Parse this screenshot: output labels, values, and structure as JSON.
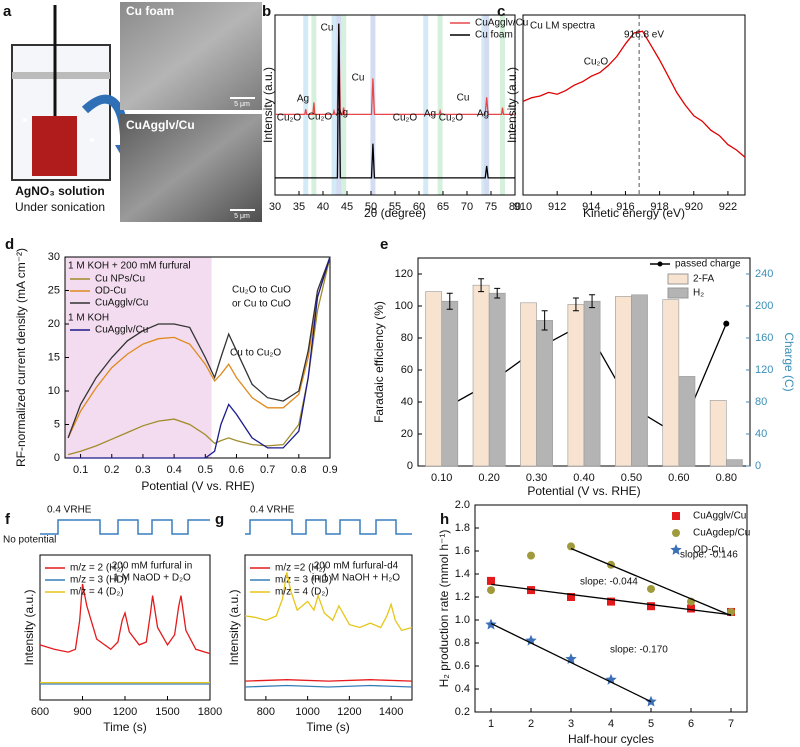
{
  "panel_a": {
    "panel": "a",
    "sem_top": "Cu foam",
    "sem_bottom": "CuAgglv/Cu",
    "scale_bar": "5 μm",
    "solution": "AgNO₃ solution",
    "condition": "Under sonication"
  },
  "chart_data": [
    {
      "panel": "b",
      "type": "line",
      "xlabel": "2θ (degree)",
      "ylabel": "Intensity (a.u.)",
      "xlim": [
        30,
        80
      ],
      "xticks": [
        30,
        35,
        40,
        45,
        50,
        55,
        60,
        65,
        70,
        75,
        80
      ],
      "ylim": [
        0,
        105
      ],
      "bands": [
        {
          "x": 36.4,
          "color": "#d3ebf7"
        },
        {
          "x": 38.1,
          "color": "#d5f0dc"
        },
        {
          "x": 42.3,
          "color": "#d3ebf7"
        },
        {
          "x": 43.3,
          "color": "#d4dcf2"
        },
        {
          "x": 44.3,
          "color": "#d5f0dc"
        },
        {
          "x": 50.4,
          "color": "#d4dcf2"
        },
        {
          "x": 61.4,
          "color": "#d3ebf7"
        },
        {
          "x": 64.4,
          "color": "#d5f0dc"
        },
        {
          "x": 73.5,
          "color": "#d3ebf7"
        },
        {
          "x": 74.1,
          "color": "#d4dcf2"
        },
        {
          "x": 77.4,
          "color": "#d5f0dc"
        }
      ],
      "annotations": [
        "Cu",
        "Cu",
        "Cu",
        "Ag",
        "Ag",
        "Ag",
        "Ag",
        "Cu₂O",
        "Cu₂O",
        "Cu₂O",
        "Cu₂O"
      ],
      "series": [
        {
          "name": "CuAgglv/Cu",
          "color": "#e8474a",
          "x": [
            30,
            36.2,
            36.4,
            36.6,
            37.9,
            38.1,
            38.3,
            42.1,
            42.3,
            42.5,
            43,
            43.3,
            43.6,
            44.1,
            44.3,
            44.5,
            50.1,
            50.4,
            50.7,
            64.2,
            64.4,
            64.6,
            73.8,
            74.1,
            74.4,
            77.2,
            77.4,
            77.6,
            80
          ],
          "values": [
            47,
            47,
            50,
            47,
            47,
            54,
            47,
            47,
            49,
            47,
            47,
            100,
            47,
            47,
            51,
            47,
            47,
            68,
            47,
            47,
            49,
            47,
            47,
            57,
            47,
            47,
            51,
            47,
            47
          ]
        },
        {
          "name": "Cu foam",
          "color": "#000000",
          "x": [
            30,
            43,
            43.3,
            43.6,
            50.1,
            50.4,
            50.7,
            73.8,
            74.1,
            74.4,
            80
          ],
          "values": [
            10,
            10,
            100,
            10,
            10,
            30,
            10,
            10,
            17,
            10,
            10
          ]
        }
      ]
    },
    {
      "panel": "c",
      "type": "line",
      "xlabel": "Kinetic energy (eV)",
      "ylabel": "Intensity (a.u.)",
      "xlim": [
        910,
        923
      ],
      "xticks": [
        910,
        912,
        914,
        916,
        918,
        920,
        922
      ],
      "ylim": [
        0,
        100
      ],
      "vline": 916.8,
      "annotations": [
        "Cu LM spectra",
        "Cu₂O",
        "916.8 eV"
      ],
      "x": [
        910,
        910.5,
        911,
        911.5,
        912,
        912.5,
        913,
        913.5,
        914,
        914.5,
        915,
        915.5,
        916,
        916.5,
        917,
        917.5,
        918,
        918.5,
        919,
        919.5,
        920,
        920.5,
        921,
        921.5,
        922,
        922.5,
        923
      ],
      "series": [
        {
          "color": "#e00000",
          "values": [
            52,
            54,
            55,
            57,
            56,
            58,
            61,
            63,
            66,
            68,
            72,
            77,
            84,
            90,
            91,
            83,
            75,
            66,
            57,
            50,
            44,
            41,
            36,
            33,
            28,
            25,
            21
          ]
        }
      ]
    },
    {
      "panel": "d",
      "type": "line",
      "xlabel": "Potential (V vs. RHE)",
      "ylabel": "RF-normalized current density (mA cm⁻²)",
      "xlim": [
        0.05,
        0.9
      ],
      "xticks": [
        0.1,
        0.2,
        0.3,
        0.4,
        0.5,
        0.6,
        0.7,
        0.8,
        0.9
      ],
      "ylim": [
        0,
        30
      ],
      "yticks": [
        0,
        5,
        10,
        15,
        20,
        25,
        30
      ],
      "shade": [
        0.05,
        0.52
      ],
      "shade_color": "#f3dcef",
      "annotations": [
        "1 M KOH + 200 mM furfural",
        "1 M KOH",
        "Cu₂O to CuO",
        "or Cu to CuO",
        "Cu to Cu₂O"
      ],
      "x": [
        0.06,
        0.1,
        0.15,
        0.2,
        0.25,
        0.3,
        0.35,
        0.4,
        0.45,
        0.5,
        0.53,
        0.55,
        0.575,
        0.6,
        0.65,
        0.7,
        0.75,
        0.8,
        0.83,
        0.86,
        0.9
      ],
      "series": [
        {
          "name": "Cu NPs/Cu",
          "color": "#a08c2a",
          "values": [
            0.5,
            1,
            1.8,
            2.8,
            3.8,
            4.8,
            5.5,
            5.8,
            5,
            3.5,
            2.2,
            2.6,
            3,
            2.6,
            2,
            1.8,
            2,
            5,
            12,
            22,
            30
          ]
        },
        {
          "name": "OD-Cu",
          "color": "#e08a1e",
          "values": [
            3,
            7,
            10.5,
            13.5,
            15.5,
            17,
            17.8,
            18,
            17,
            14,
            11.5,
            12.5,
            14,
            12,
            9,
            7.5,
            7.5,
            9.5,
            15,
            24,
            30
          ]
        },
        {
          "name": "CuAgglv/Cu",
          "color": "#333333",
          "values": [
            3,
            8,
            12,
            15,
            17.5,
            19,
            20,
            20,
            19.5,
            15,
            12,
            15,
            18.5,
            16,
            11,
            9,
            8.5,
            10,
            16,
            25,
            30
          ]
        },
        {
          "name": "CuAgglv/Cu",
          "color": "#1a1a8c",
          "values": [
            0,
            0,
            0,
            0,
            0,
            0,
            0,
            0,
            0,
            0,
            1,
            5,
            8,
            6.5,
            3,
            1.5,
            1.5,
            4,
            12,
            24,
            30
          ]
        }
      ]
    },
    {
      "panel": "e",
      "type": "bar",
      "xlabel": "Potential (V vs. RHE)",
      "ylabel": "Faradaic efficiency (%)",
      "y2label": "Charge (C)",
      "y2color": "#3a8fb7",
      "categories": [
        "0.10",
        "0.20",
        "0.30",
        "0.40",
        "0.50",
        "0.60",
        "0.80"
      ],
      "ylim": [
        0,
        130
      ],
      "yticks": [
        0,
        20,
        40,
        60,
        80,
        100,
        120
      ],
      "y2lim": [
        0,
        260
      ],
      "y2ticks": [
        0,
        40,
        80,
        120,
        160,
        200,
        240
      ],
      "series": [
        {
          "name": "passed charge",
          "color": "#000000",
          "axis": "y2",
          "values": [
            70,
            103,
            146,
            178,
            74,
            38,
            178
          ],
          "errors": [
            4,
            15,
            15,
            14,
            null,
            null,
            null
          ]
        },
        {
          "name": "2-FA",
          "color": "#f7e3cf",
          "values": [
            109,
            113,
            102,
            101,
            106,
            104,
            41
          ],
          "errors": [
            null,
            4,
            null,
            4,
            null,
            null,
            null
          ]
        },
        {
          "name": "H₂",
          "color": "#b4b4b4",
          "values": [
            103,
            108,
            91,
            103,
            107,
            56,
            4
          ],
          "errors": [
            5,
            3,
            6,
            4,
            null,
            null,
            null
          ]
        }
      ]
    },
    {
      "panel": "f",
      "type": "line",
      "xlabel": "Time (s)",
      "ylabel": "Intensity (a.u.)",
      "xlim": [
        600,
        1800
      ],
      "xticks": [
        600,
        900,
        1200,
        1500,
        1800
      ],
      "ylim": [
        0,
        100
      ],
      "annotations": [
        "200 mM furfural in",
        "1 M NaOD + D₂O",
        "0.4 VRHE",
        "No potential"
      ],
      "series": [
        {
          "name": "m/z = 2 (H₂)",
          "color": "#e41a1c",
          "x": [
            600,
            700,
            800,
            850,
            880,
            900,
            930,
            1000,
            1100,
            1150,
            1180,
            1200,
            1230,
            1300,
            1350,
            1380,
            1395,
            1430,
            1500,
            1550,
            1580,
            1595,
            1630,
            1700,
            1800
          ],
          "values": [
            38,
            35,
            33,
            35,
            55,
            80,
            65,
            42,
            35,
            40,
            55,
            60,
            47,
            38,
            40,
            60,
            72,
            50,
            38,
            45,
            65,
            72,
            48,
            35,
            32
          ]
        },
        {
          "name": "m/z = 3 (HD)",
          "color": "#377eb8",
          "x": [
            600,
            1800
          ],
          "values": [
            11,
            11
          ]
        },
        {
          "name": "m/z = 4 (D₂)",
          "color": "#e6c619",
          "x": [
            600,
            1800
          ],
          "values": [
            12,
            12
          ]
        }
      ]
    },
    {
      "panel": "g",
      "type": "line",
      "xlabel": "Time (s)",
      "ylabel": "Intensity (a.u.)",
      "xlim": [
        700,
        1500
      ],
      "xticks": [
        800,
        1000,
        1200,
        1400
      ],
      "ylim": [
        0,
        100
      ],
      "annotations": [
        "200 mM furfural-d4",
        "in 1 M NaOH + H₂O",
        "0.4 VRHE"
      ],
      "series": [
        {
          "name": "m/z =2 (H₂)",
          "color": "#e41a1c",
          "x": [
            700,
            900,
            1100,
            1300,
            1500
          ],
          "values": [
            13,
            14,
            13,
            14,
            13
          ]
        },
        {
          "name": "m/z = 3 (HD)",
          "color": "#377eb8",
          "x": [
            700,
            900,
            1100,
            1300,
            1500
          ],
          "values": [
            9,
            10,
            9,
            10,
            9
          ]
        },
        {
          "name": "m/z = 4 (D₂)",
          "color": "#e6c619",
          "x": [
            700,
            750,
            800,
            850,
            880,
            900,
            920,
            950,
            1000,
            1030,
            1050,
            1080,
            1120,
            1150,
            1200,
            1250,
            1300,
            1350,
            1380,
            1400,
            1420,
            1450,
            1500
          ],
          "values": [
            58,
            57,
            55,
            58,
            70,
            88,
            75,
            62,
            68,
            62,
            72,
            60,
            55,
            65,
            52,
            50,
            53,
            50,
            58,
            66,
            55,
            48,
            50
          ]
        }
      ]
    },
    {
      "panel": "h",
      "type": "scatter",
      "xlabel": "Half-hour cycles",
      "ylabel": "H₂ production rate (mmol h⁻¹)",
      "xlim": [
        0.6,
        7.4
      ],
      "xticks": [
        1,
        2,
        3,
        4,
        5,
        6,
        7
      ],
      "ylim": [
        0.2,
        2.0
      ],
      "yticks": [
        0.2,
        0.4,
        0.6,
        0.8,
        {
          "value": 1.0,
          "label": "1.0"
        },
        1.2,
        1.4,
        1.6,
        1.8,
        {
          "value": 2.0,
          "label": "2.0"
        }
      ],
      "series": [
        {
          "name": "CuAgglv/Cu",
          "color": "#e41a1c",
          "marker": "square",
          "x": [
            1,
            2,
            3,
            4,
            5,
            6,
            7
          ],
          "values": [
            1.34,
            1.26,
            1.2,
            1.16,
            1.12,
            1.1,
            1.07
          ]
        },
        {
          "name": "CuAgdep/Cu",
          "color": "#a09a3c",
          "marker": "circle",
          "x": [
            1,
            2,
            3,
            4,
            5,
            6,
            7
          ],
          "values": [
            1.26,
            1.56,
            1.64,
            1.48,
            1.27,
            1.16,
            1.07
          ]
        },
        {
          "name": "OD-Cu",
          "color": "#3b6fb6",
          "marker": "star",
          "x": [
            1,
            2,
            3,
            4,
            5
          ],
          "values": [
            0.96,
            0.82,
            0.66,
            0.48,
            0.29
          ]
        }
      ],
      "fits": [
        {
          "label": "slope: -0.146",
          "slope": -0.146,
          "intercept": 2.06,
          "x_range": [
            3,
            7
          ]
        },
        {
          "label": "slope: -0.044",
          "slope": -0.044,
          "intercept": 1.354,
          "x_range": [
            1,
            7
          ]
        },
        {
          "label": "slope: -0.170",
          "slope": -0.17,
          "intercept": 1.14,
          "x_range": [
            1,
            5
          ]
        }
      ]
    }
  ]
}
